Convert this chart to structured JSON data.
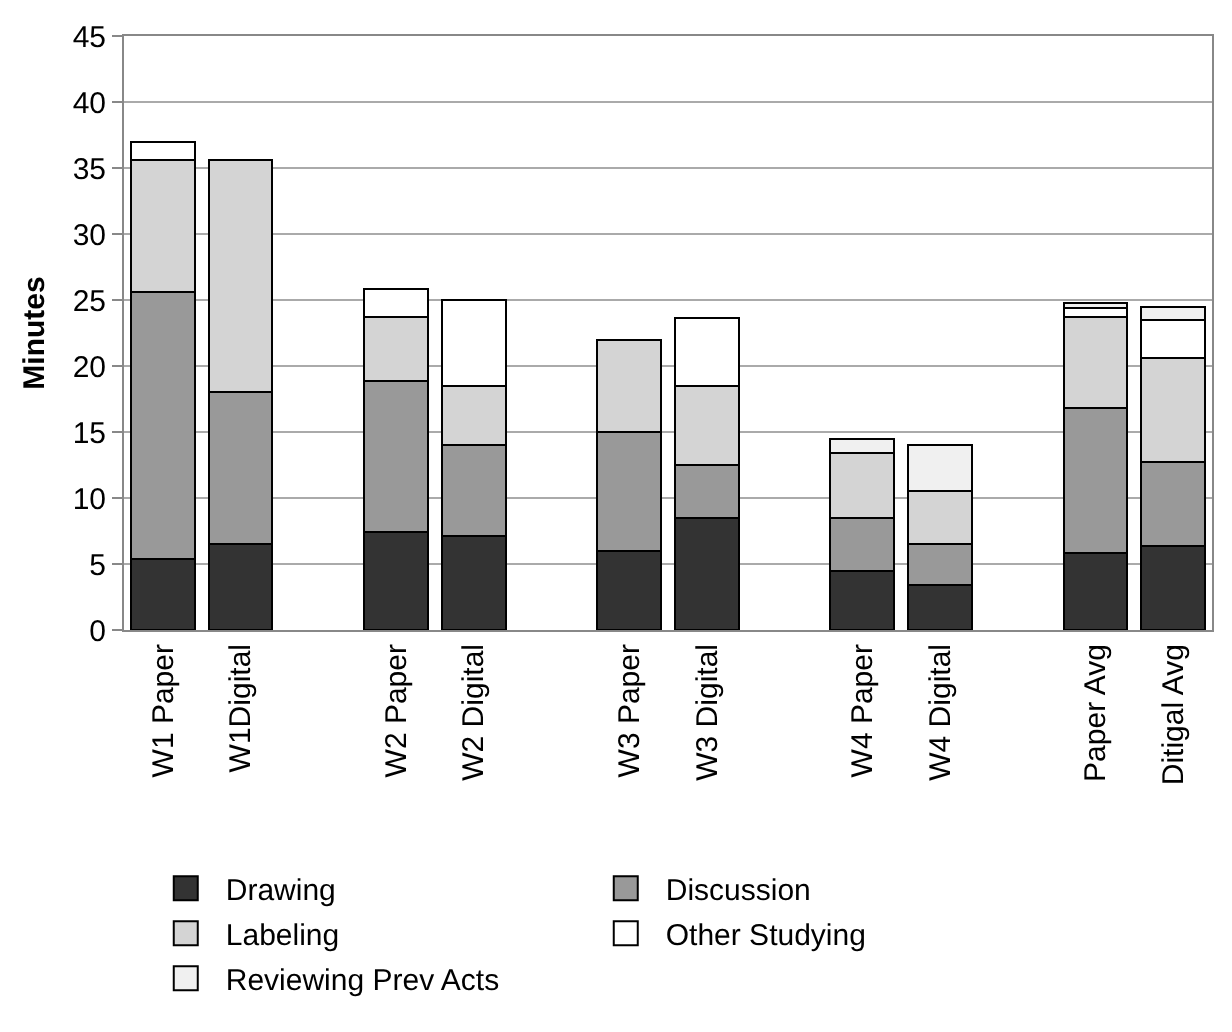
{
  "chart_data": {
    "type": "bar",
    "stacked": true,
    "ylabel": "Minutes",
    "categories": [
      "W1 Paper",
      "W1Digital",
      null,
      "W2 Paper",
      "W2 Digital",
      null,
      "W3 Paper",
      "W3 Digital",
      null,
      "W4 Paper",
      "W4 Digital",
      null,
      "Paper Avg",
      "Ditigal Avg"
    ],
    "series": [
      {
        "name": "Drawing",
        "color": "#333333",
        "values": [
          5.4,
          6.5,
          null,
          7.4,
          7.1,
          null,
          6,
          8.5,
          null,
          4.5,
          3.4,
          null,
          5.8,
          6.4
        ]
      },
      {
        "name": "Discussion",
        "color": "#999999",
        "values": [
          20.2,
          11.5,
          null,
          11.5,
          6.9,
          null,
          9,
          4,
          null,
          4,
          3.1,
          null,
          11,
          6.3
        ]
      },
      {
        "name": "Labeling",
        "color": "#d4d4d4",
        "values": [
          10,
          17.6,
          null,
          4.8,
          4.5,
          null,
          7,
          6,
          null,
          4.9,
          4,
          null,
          6.9,
          7.9
        ]
      },
      {
        "name": "Other Studying",
        "color": "#ffffff",
        "values": [
          1.4,
          null,
          null,
          2.1,
          6.5,
          null,
          null,
          5.1,
          null,
          null,
          null,
          null,
          0.7,
          2.9
        ]
      },
      {
        "name": "Reviewing Prev Acts",
        "color": "#f0f0f0",
        "values": [
          null,
          null,
          null,
          null,
          null,
          null,
          null,
          null,
          null,
          1.1,
          3.5,
          null,
          0.4,
          1
        ]
      }
    ],
    "ylim": [
      0,
      45
    ],
    "yticks": [
      0,
      5,
      10,
      15,
      20,
      25,
      30,
      35,
      40,
      45
    ],
    "grid": "y",
    "legend": "bottom"
  }
}
